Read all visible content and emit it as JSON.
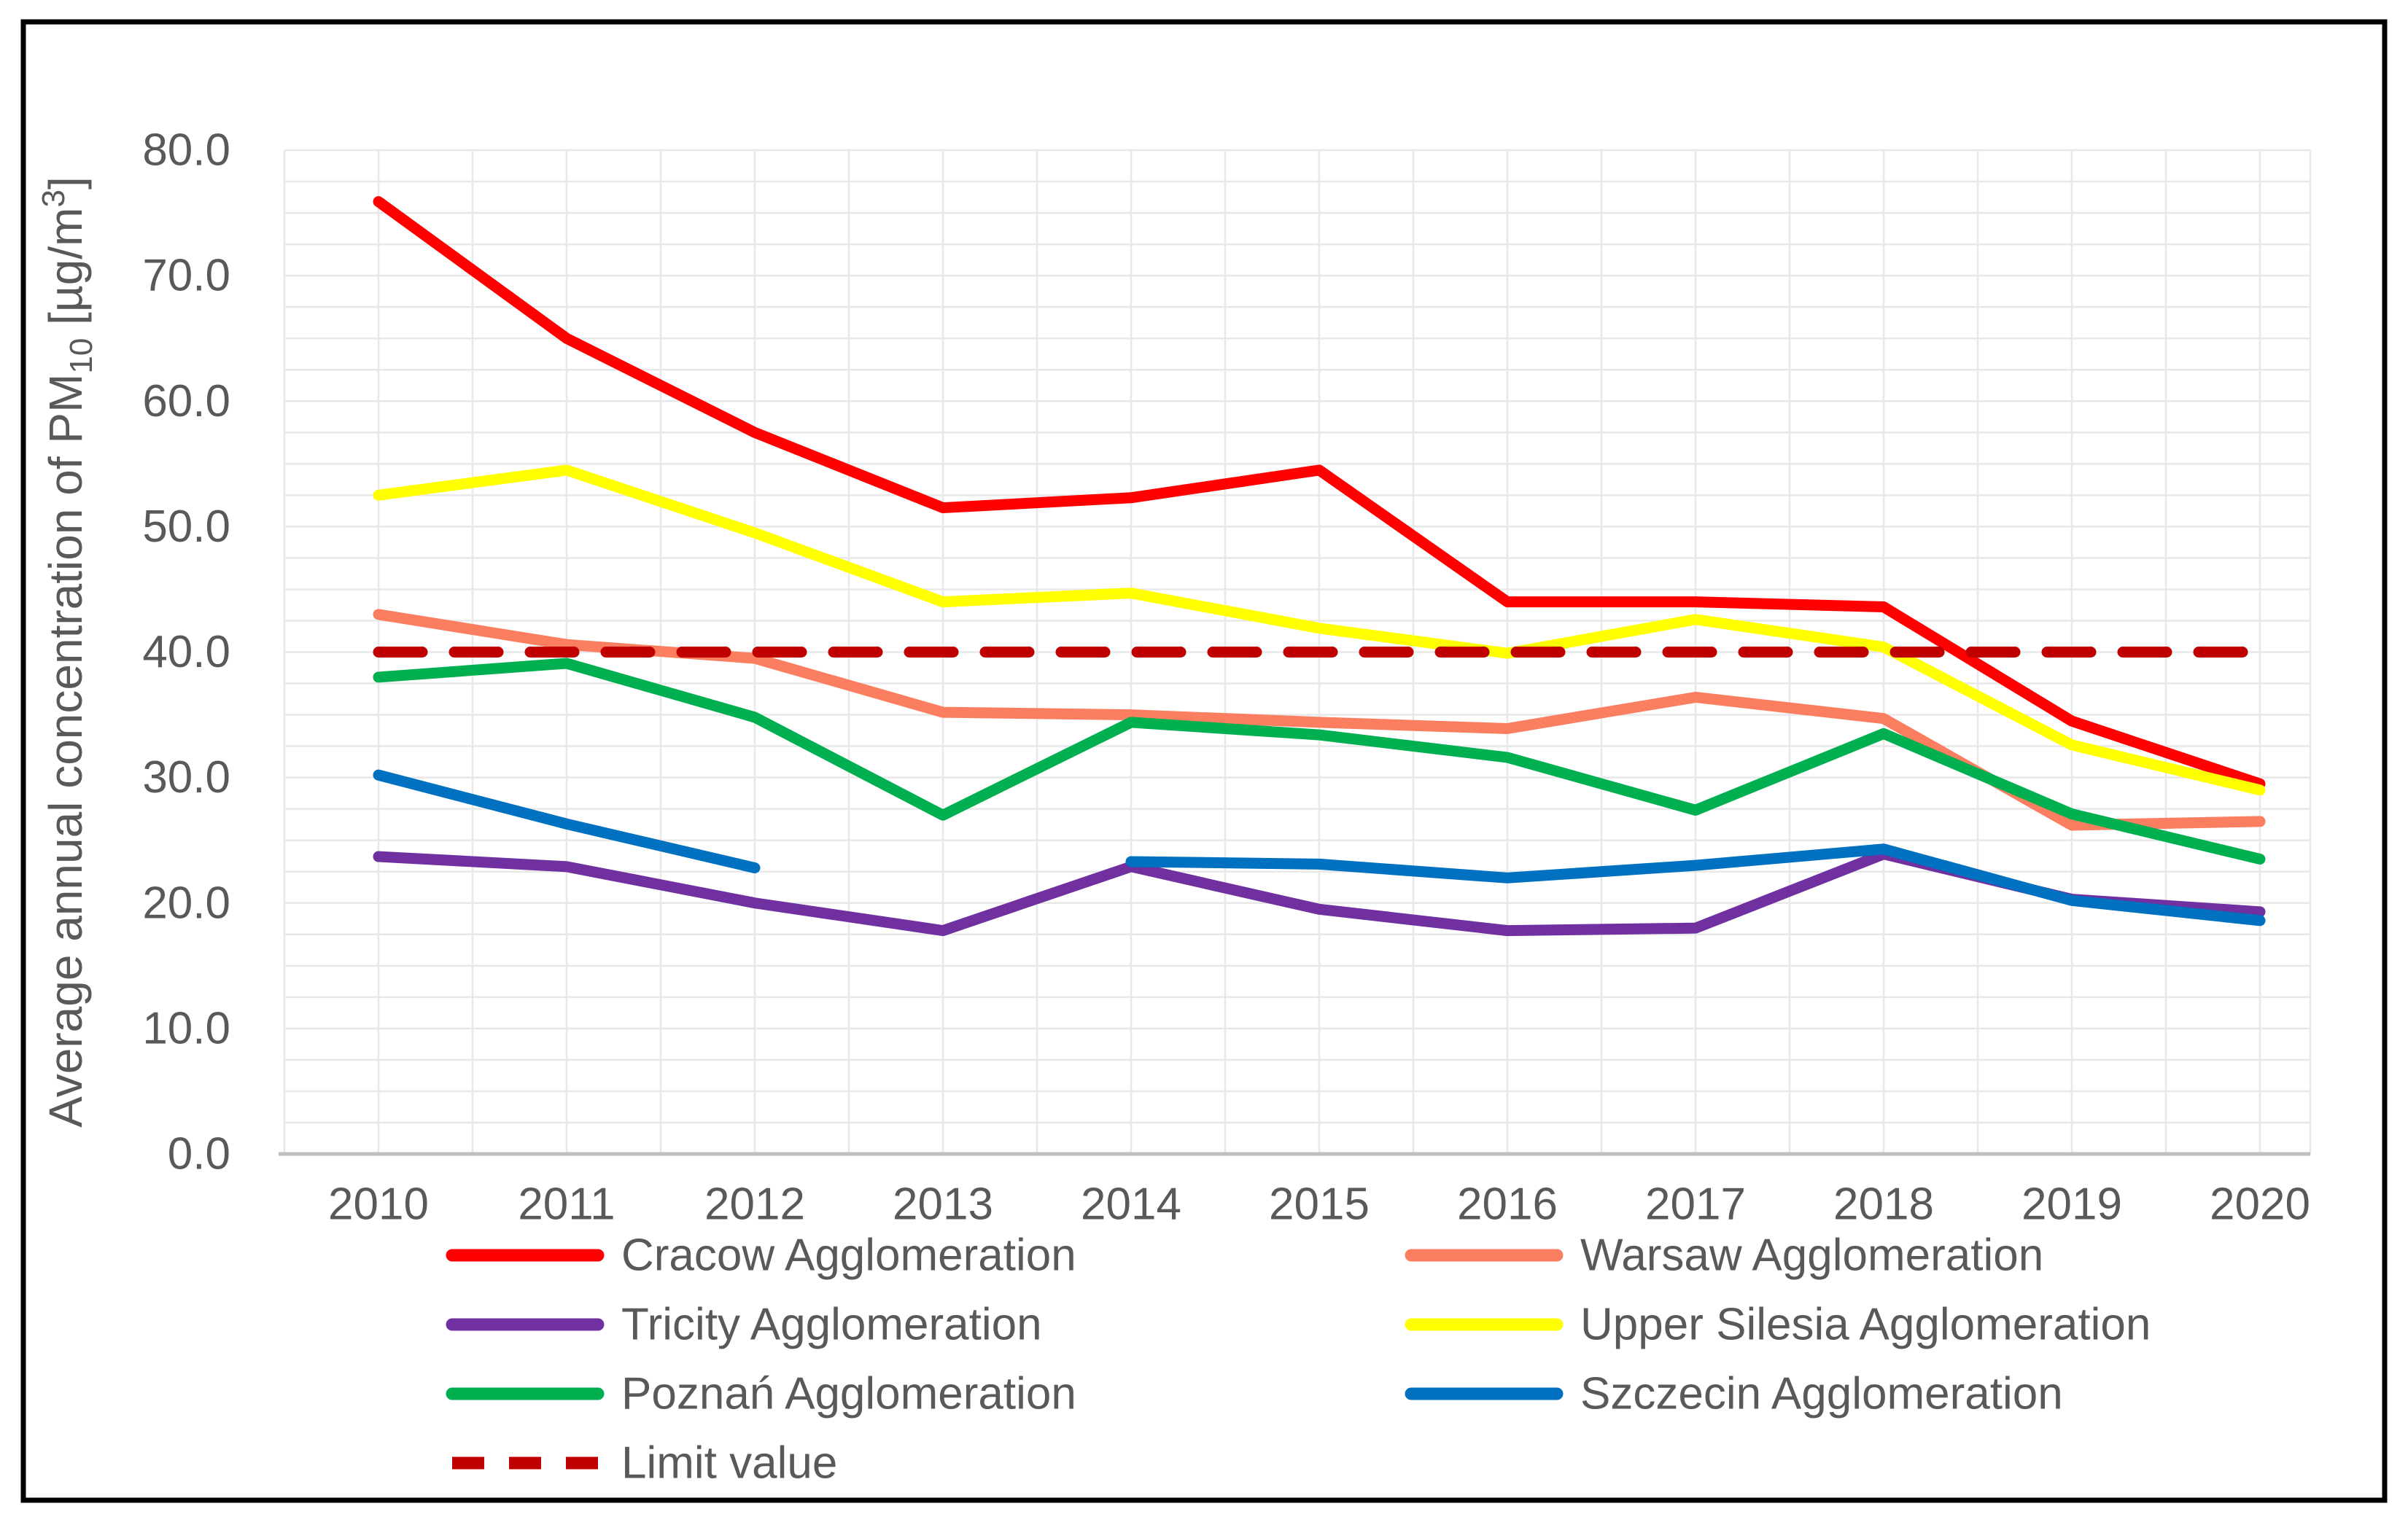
{
  "figure": {
    "background": "#ffffff",
    "border_color": "#000000",
    "text_color": "#595959",
    "gridline_color": "#e8e8e8",
    "axis_line_color": "#bfbfbf"
  },
  "chart_data": {
    "type": "line",
    "title": "",
    "xlabel": "",
    "ylabel": "Average annual concentration of PM10 [µg/m3]",
    "ylabel_parts": [
      {
        "t": "Average annual concentration of PM",
        "style": "normal"
      },
      {
        "t": "10",
        "style": "sub"
      },
      {
        "t": " [µg/m",
        "style": "normal"
      },
      {
        "t": "3",
        "style": "sup"
      },
      {
        "t": "]",
        "style": "normal"
      }
    ],
    "x": [
      2010,
      2011,
      2012,
      2013,
      2014,
      2015,
      2016,
      2017,
      2018,
      2019,
      2020
    ],
    "x_tick_labels": [
      "2010",
      "2011",
      "2012",
      "2013",
      "2014",
      "2015",
      "2016",
      "2017",
      "2018",
      "2019",
      "2020"
    ],
    "ylim": [
      0,
      80
    ],
    "y_major_step": 10,
    "y_minor_step": 2.5,
    "y_tick_labels": [
      "0.0",
      "10.0",
      "20.0",
      "30.0",
      "40.0",
      "50.0",
      "60.0",
      "70.0",
      "80.0"
    ],
    "grid": "minor-on",
    "legend_position": "bottom-two-columns",
    "series": [
      {
        "id": "cracow",
        "name": "Cracow Agglomeration",
        "color": "#ff0000",
        "dashed": false,
        "values": [
          75.9,
          65.0,
          57.5,
          51.5,
          52.3,
          54.5,
          44.0,
          44.0,
          43.6,
          34.5,
          29.5
        ]
      },
      {
        "id": "warsaw",
        "name": "Warsaw Agglomeration",
        "color": "#fa7e5f",
        "dashed": false,
        "values": [
          43.0,
          40.6,
          39.5,
          35.2,
          35.0,
          34.4,
          33.9,
          36.4,
          34.7,
          26.2,
          26.5
        ]
      },
      {
        "id": "tricity",
        "name": "Tricity Agglomeration",
        "color": "#7030a0",
        "dashed": false,
        "values": [
          23.7,
          22.9,
          20.0,
          17.8,
          22.9,
          19.5,
          17.8,
          18.0,
          23.9,
          20.3,
          19.3
        ]
      },
      {
        "id": "upper-silesia",
        "name": "Upper Silesia Agglomeration",
        "color": "#ffff00",
        "dashed": false,
        "values": [
          52.5,
          54.5,
          49.5,
          44.0,
          44.7,
          41.9,
          39.9,
          42.6,
          40.4,
          32.6,
          29.0
        ]
      },
      {
        "id": "poznan",
        "name": "Poznań Agglomeration",
        "color": "#00b050",
        "dashed": false,
        "values": [
          38.0,
          39.1,
          34.8,
          27.0,
          34.4,
          33.4,
          31.6,
          27.4,
          33.5,
          27.1,
          23.5
        ]
      },
      {
        "id": "szczecin",
        "name": "Szczecin Agglomeration",
        "color": "#0070c0",
        "dashed": false,
        "values": [
          30.2,
          26.3,
          22.8,
          null,
          23.3,
          23.1,
          22.0,
          23.0,
          24.3,
          20.2,
          18.6
        ]
      },
      {
        "id": "limit",
        "name": "Limit value",
        "color": "#c00000",
        "dashed": true,
        "values": [
          40,
          40,
          40,
          40,
          40,
          40,
          40,
          40,
          40,
          40,
          40
        ]
      }
    ],
    "legend": {
      "columns": [
        {
          "series": [
            "cracow",
            "tricity",
            "poznan",
            "limit"
          ]
        },
        {
          "series": [
            "warsaw",
            "upper-silesia",
            "szczecin"
          ]
        }
      ]
    }
  }
}
